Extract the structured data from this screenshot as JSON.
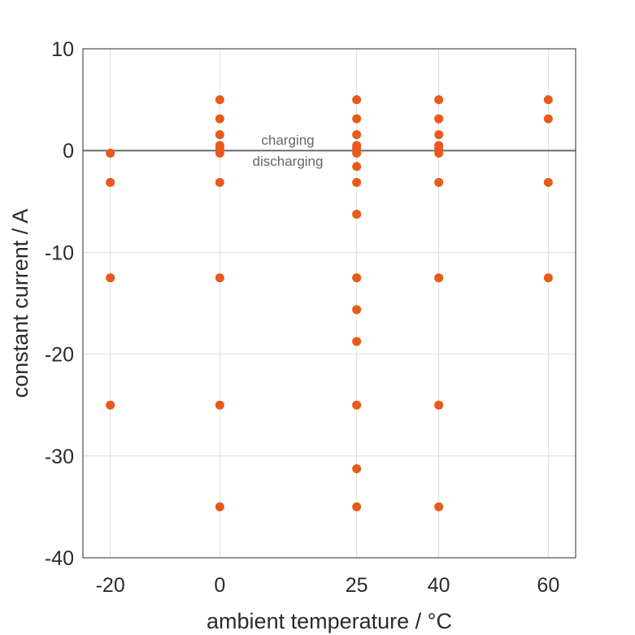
{
  "chart_data": {
    "type": "scatter",
    "title": "",
    "xlabel": "ambient temperature / °C",
    "ylabel": "constant current / A",
    "xlim": [
      -25,
      65
    ],
    "ylim": [
      -40,
      10
    ],
    "xticks": [
      -20,
      0,
      25,
      40,
      60
    ],
    "yticks": [
      -40,
      -30,
      -20,
      -10,
      0,
      10
    ],
    "xtick_labels": [
      "-20",
      "0",
      "25",
      "40",
      "60"
    ],
    "ytick_labels": [
      "-40",
      "-30",
      "-20",
      "-10",
      "0",
      "10"
    ],
    "grid": true,
    "marker_color": "#e8591a",
    "zero_line_color": "#6b6b6b",
    "annotations": [
      "charging",
      "discharging"
    ],
    "points": [
      {
        "x": -20,
        "y": -0.25
      },
      {
        "x": -20,
        "y": -3.125
      },
      {
        "x": -20,
        "y": -12.5
      },
      {
        "x": -20,
        "y": -25
      },
      {
        "x": 0,
        "y": 5
      },
      {
        "x": 0,
        "y": 3.125
      },
      {
        "x": 0,
        "y": 1.5625
      },
      {
        "x": 0,
        "y": 0.5
      },
      {
        "x": 0,
        "y": 0.25
      },
      {
        "x": 0,
        "y": -0.25
      },
      {
        "x": 0,
        "y": -3.125
      },
      {
        "x": 0,
        "y": -12.5
      },
      {
        "x": 0,
        "y": -25
      },
      {
        "x": 0,
        "y": -35
      },
      {
        "x": 25,
        "y": 5
      },
      {
        "x": 25,
        "y": 3.125
      },
      {
        "x": 25,
        "y": 1.5625
      },
      {
        "x": 25,
        "y": 0.5
      },
      {
        "x": 25,
        "y": 0.25
      },
      {
        "x": 25,
        "y": -0.25
      },
      {
        "x": 25,
        "y": -1.5625
      },
      {
        "x": 25,
        "y": -3.125
      },
      {
        "x": 25,
        "y": -6.25
      },
      {
        "x": 25,
        "y": -12.5
      },
      {
        "x": 25,
        "y": -15.625
      },
      {
        "x": 25,
        "y": -18.75
      },
      {
        "x": 25,
        "y": -25
      },
      {
        "x": 25,
        "y": -31.25
      },
      {
        "x": 25,
        "y": -35
      },
      {
        "x": 40,
        "y": 5
      },
      {
        "x": 40,
        "y": 3.125
      },
      {
        "x": 40,
        "y": 1.5625
      },
      {
        "x": 40,
        "y": 0.5
      },
      {
        "x": 40,
        "y": 0.25
      },
      {
        "x": 40,
        "y": -0.25
      },
      {
        "x": 40,
        "y": -3.125
      },
      {
        "x": 40,
        "y": -12.5
      },
      {
        "x": 40,
        "y": -25
      },
      {
        "x": 40,
        "y": -35
      },
      {
        "x": 60,
        "y": 5
      },
      {
        "x": 60,
        "y": 3.125
      },
      {
        "x": 60,
        "y": -3.125
      },
      {
        "x": 60,
        "y": -12.5
      }
    ]
  }
}
